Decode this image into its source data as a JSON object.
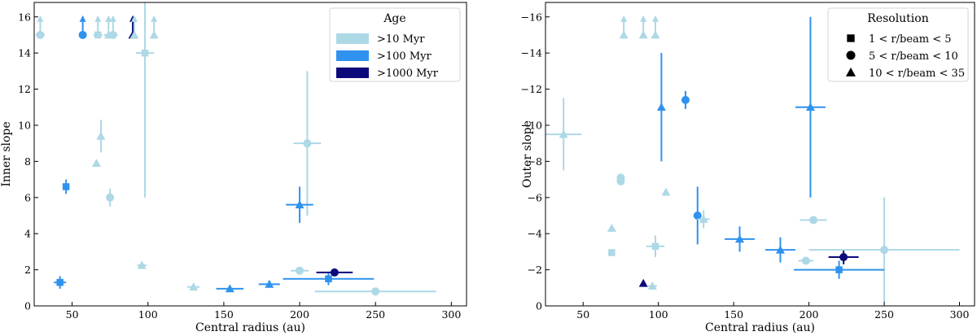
{
  "chart_data": [
    {
      "id": "inner",
      "type": "scatter",
      "xlabel": "Central radius (au)",
      "ylabel": "Inner slope",
      "xlim": [
        25,
        310
      ],
      "ylim": [
        0,
        16.8
      ],
      "y_inverted": false,
      "xticks": [
        50,
        100,
        150,
        200,
        250,
        300
      ],
      "yticks": [
        0,
        2,
        4,
        6,
        8,
        10,
        12,
        14,
        16
      ],
      "xtick_labels": [
        "50",
        "100",
        "150",
        "200",
        "250",
        "300"
      ],
      "ytick_labels": [
        "0",
        "2",
        "4",
        "6",
        "8",
        "10",
        "12",
        "14",
        "16"
      ],
      "legend": {
        "title": "Age",
        "position": "top-right",
        "entries": [
          {
            "label": ">10 Myr",
            "color": "#add8e6"
          },
          {
            "label": ">100 Myr",
            "color": "#2f92ef"
          },
          {
            "label": ">1000 Myr",
            "color": "#0c0a7a"
          }
        ]
      },
      "points": [
        {
          "x": 29,
          "y": 15,
          "xerr": 3,
          "yerr": 0,
          "marker": "circle",
          "age": "young",
          "lower_limit": true
        },
        {
          "x": 57,
          "y": 15,
          "xerr": 0,
          "yerr": 0,
          "marker": "circle",
          "age": "mid",
          "lower_limit": true
        },
        {
          "x": 67,
          "y": 15,
          "xerr": 3,
          "yerr": 0,
          "marker": "square",
          "age": "young",
          "lower_limit": true
        },
        {
          "x": 74,
          "y": 15,
          "xerr": 3,
          "yerr": 0,
          "marker": "triangle",
          "age": "young",
          "lower_limit": true
        },
        {
          "x": 77,
          "y": 15,
          "xerr": 3,
          "yerr": 0,
          "marker": "circle",
          "age": "young",
          "lower_limit": true
        },
        {
          "x": 90,
          "y": 15,
          "xerr": 0,
          "yerr": 0,
          "marker": "triangle",
          "age": "old",
          "lower_limit": true
        },
        {
          "x": 91,
          "y": 15,
          "xerr": 0,
          "yerr": 0,
          "marker": "triangle",
          "age": "young",
          "lower_limit": true
        },
        {
          "x": 104,
          "y": 15,
          "xerr": 0,
          "yerr": 0,
          "marker": "triangle",
          "age": "young",
          "lower_limit": true
        },
        {
          "x": 98,
          "y": 14,
          "xerr": 6,
          "yerr": 8,
          "marker": "square",
          "age": "young",
          "lower_limit": false
        },
        {
          "x": 69,
          "y": 9.4,
          "xerr": 0,
          "yerr": 0.9,
          "marker": "triangle",
          "age": "young",
          "lower_limit": false
        },
        {
          "x": 66,
          "y": 7.9,
          "xerr": 0,
          "yerr": 0,
          "marker": "triangle",
          "age": "young",
          "lower_limit": false
        },
        {
          "x": 46,
          "y": 6.6,
          "xerr": 0,
          "yerr": 0.4,
          "marker": "square",
          "age": "mid",
          "lower_limit": false
        },
        {
          "x": 75,
          "y": 6.0,
          "xerr": 0,
          "yerr": 0.5,
          "marker": "circle",
          "age": "young",
          "lower_limit": false
        },
        {
          "x": 205,
          "y": 9.0,
          "xerr": 9,
          "yerr": 4,
          "marker": "circle",
          "age": "young",
          "lower_limit": false
        },
        {
          "x": 200,
          "y": 5.6,
          "xerr": 9,
          "yerr": 1.0,
          "marker": "triangle",
          "age": "mid",
          "lower_limit": false
        },
        {
          "x": 42,
          "y": 1.3,
          "xerr": 4,
          "yerr": 0.35,
          "marker": "square",
          "age": "mid",
          "lower_limit": false
        },
        {
          "x": 96,
          "y": 2.25,
          "xerr": 3,
          "yerr": 0.15,
          "marker": "triangle",
          "age": "young",
          "lower_limit": false
        },
        {
          "x": 130,
          "y": 1.05,
          "xerr": 4,
          "yerr": 0.15,
          "marker": "triangle",
          "age": "young",
          "lower_limit": false
        },
        {
          "x": 154,
          "y": 0.95,
          "xerr": 9,
          "yerr": 0.12,
          "marker": "triangle",
          "age": "mid",
          "lower_limit": false
        },
        {
          "x": 180,
          "y": 1.2,
          "xerr": 7,
          "yerr": 0.2,
          "marker": "triangle",
          "age": "mid",
          "lower_limit": false
        },
        {
          "x": 200,
          "y": 1.95,
          "xerr": 6,
          "yerr": 0.1,
          "marker": "circle",
          "age": "young",
          "lower_limit": false
        },
        {
          "x": 219,
          "y": 1.5,
          "xerr": 30,
          "yerr": 0.35,
          "marker": "square",
          "age": "mid",
          "lower_limit": false
        },
        {
          "x": 223,
          "y": 1.85,
          "xerr": 12,
          "yerr": 0.15,
          "marker": "circle",
          "age": "old",
          "lower_limit": false
        },
        {
          "x": 250,
          "y": 0.8,
          "xerr": 40,
          "yerr": 0.2,
          "marker": "circle",
          "age": "young",
          "lower_limit": false
        }
      ]
    },
    {
      "id": "outer",
      "type": "scatter",
      "xlabel": "Central radius (au)",
      "ylabel": "Outer slope",
      "xlim": [
        25,
        310
      ],
      "ylim": [
        0,
        -16.8
      ],
      "y_inverted": true,
      "xticks": [
        50,
        100,
        150,
        200,
        250,
        300
      ],
      "yticks": [
        0,
        -2,
        -4,
        -6,
        -8,
        -10,
        -12,
        -14,
        -16
      ],
      "xtick_labels": [
        "50",
        "100",
        "150",
        "200",
        "250",
        "300"
      ],
      "ytick_labels": [
        "0",
        "−2",
        "−4",
        "−6",
        "−8",
        "−10",
        "−12",
        "−14",
        "−16"
      ],
      "legend": {
        "title": "Resolution",
        "position": "top-right",
        "entries": [
          {
            "label": "1 < r/beam < 5",
            "marker": "square"
          },
          {
            "label": "5 < r/beam < 10",
            "marker": "circle"
          },
          {
            "label": "10 < r/beam < 35",
            "marker": "triangle"
          }
        ]
      },
      "points": [
        {
          "x": 77,
          "y": -15,
          "xerr": 0,
          "yerr": 0,
          "marker": "triangle",
          "age": "young",
          "lower_limit": true
        },
        {
          "x": 90,
          "y": -15,
          "xerr": 0,
          "yerr": 0,
          "marker": "triangle",
          "age": "young",
          "lower_limit": true
        },
        {
          "x": 98,
          "y": -15,
          "xerr": 0,
          "yerr": 0,
          "marker": "triangle",
          "age": "young",
          "lower_limit": true
        },
        {
          "x": 37,
          "y": -9.5,
          "xerr": 12,
          "yerr": 2.0,
          "marker": "triangle",
          "age": "young",
          "lower_limit": false
        },
        {
          "x": 102,
          "y": -11,
          "xerr": 0,
          "yerr": 3.0,
          "marker": "triangle",
          "age": "mid",
          "lower_limit": false
        },
        {
          "x": 118,
          "y": -11.4,
          "xerr": 0,
          "yerr": 0.5,
          "marker": "circle",
          "age": "mid",
          "lower_limit": false
        },
        {
          "x": 201,
          "y": -11,
          "xerr": 10,
          "yerr": 5.0,
          "marker": "triangle",
          "age": "mid",
          "lower_limit": false
        },
        {
          "x": 75,
          "y": -7.1,
          "xerr": 0,
          "yerr": 0.15,
          "marker": "circle",
          "age": "young",
          "lower_limit": false
        },
        {
          "x": 75,
          "y": -6.9,
          "xerr": 0,
          "yerr": 0.15,
          "marker": "circle",
          "age": "young",
          "lower_limit": false
        },
        {
          "x": 105,
          "y": -6.3,
          "xerr": 0,
          "yerr": 0,
          "marker": "triangle",
          "age": "young",
          "lower_limit": false
        },
        {
          "x": 126,
          "y": -5.0,
          "xerr": 0,
          "yerr": 1.6,
          "marker": "circle",
          "age": "mid",
          "lower_limit": false
        },
        {
          "x": 130,
          "y": -4.8,
          "xerr": 4,
          "yerr": 0.5,
          "marker": "triangle",
          "age": "young",
          "lower_limit": false
        },
        {
          "x": 69,
          "y": -4.3,
          "xerr": 0,
          "yerr": 0,
          "marker": "triangle",
          "age": "young",
          "lower_limit": false
        },
        {
          "x": 203,
          "y": -4.75,
          "xerr": 9,
          "yerr": 0.1,
          "marker": "circle",
          "age": "young",
          "lower_limit": false
        },
        {
          "x": 98,
          "y": -3.3,
          "xerr": 6,
          "yerr": 0.6,
          "marker": "square",
          "age": "young",
          "lower_limit": false
        },
        {
          "x": 154,
          "y": -3.7,
          "xerr": 10,
          "yerr": 0.7,
          "marker": "triangle",
          "age": "mid",
          "lower_limit": false
        },
        {
          "x": 181,
          "y": -3.1,
          "xerr": 10,
          "yerr": 0.7,
          "marker": "triangle",
          "age": "mid",
          "lower_limit": false
        },
        {
          "x": 69,
          "y": -2.95,
          "xerr": 0,
          "yerr": 0,
          "marker": "square",
          "age": "young",
          "lower_limit": false
        },
        {
          "x": 198,
          "y": -2.5,
          "xerr": 5,
          "yerr": 0.1,
          "marker": "circle",
          "age": "young",
          "lower_limit": false
        },
        {
          "x": 223,
          "y": -2.7,
          "xerr": 10,
          "yerr": 0.4,
          "marker": "circle",
          "age": "old",
          "lower_limit": false
        },
        {
          "x": 250,
          "y": -3.1,
          "xerr": 50,
          "yerr": 2.9,
          "marker": "circle",
          "age": "young",
          "lower_limit": false
        },
        {
          "x": 220,
          "y": -2.0,
          "xerr": 30,
          "yerr": 0.5,
          "marker": "square",
          "age": "mid",
          "lower_limit": false
        },
        {
          "x": 90,
          "y": -1.25,
          "xerr": 0,
          "yerr": 0,
          "marker": "triangle",
          "age": "old",
          "lower_limit": false
        },
        {
          "x": 96,
          "y": -1.1,
          "xerr": 3,
          "yerr": 0.1,
          "marker": "triangle",
          "age": "young",
          "lower_limit": false
        }
      ]
    }
  ],
  "colors": {
    "young": "#add8e6",
    "mid": "#2f92ef",
    "old": "#0c0a7a"
  }
}
